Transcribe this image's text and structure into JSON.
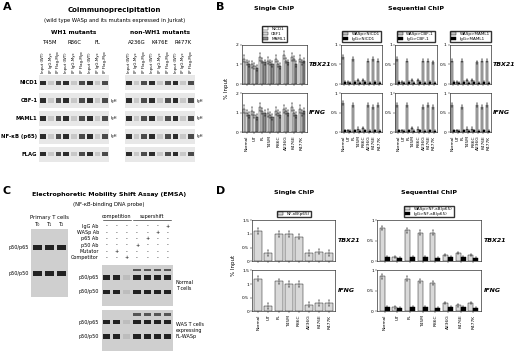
{
  "coip": {
    "label": "A",
    "title": "Coimmunoprecipitation",
    "subtitle": "(wild type WASp and its mutants expressed in Jurkat)",
    "groups": [
      {
        "title": "WH1 mutants",
        "mutants": [
          "T45M",
          "R86C",
          "FL"
        ]
      },
      {
        "title": "non-WH1 mutants",
        "mutants": [
          "A236G",
          "K476E",
          "R477K"
        ]
      }
    ],
    "lanes": [
      "Input (WT)",
      "IP IgG-Myc",
      "IP Flag-Myc"
    ],
    "rows": [
      "NICD1",
      "CBF-1",
      "MAML1",
      "NF-κB (p65)",
      "FLAG"
    ],
    "row_notes": {
      "CBF-1": "IgH",
      "MAML1": "IgH",
      "NF-κB (p65)": "IgH"
    }
  },
  "emsa": {
    "label": "C",
    "title": "Electrophoretic Mobility Shift Assay (EMSA)",
    "subtitle": "(NF-κB-binding DNA probe)",
    "primary": {
      "title": "Primary T cells",
      "lanes": [
        "T₀",
        "T₁",
        "T₂"
      ]
    },
    "bands": [
      "p50/p65",
      "p50/p50"
    ],
    "lane_sections": [
      "competition",
      "competition",
      "competition",
      "supershift",
      "supershift",
      "supershift",
      "supershift"
    ],
    "treatments": [
      {
        "name": "IgG Ab",
        "marks": [
          "-",
          "-",
          "-",
          "-",
          "-",
          "-",
          "+"
        ]
      },
      {
        "name": "WASp Ab",
        "marks": [
          "-",
          "-",
          "-",
          "-",
          "-",
          "+",
          "-"
        ]
      },
      {
        "name": "p65 Ab",
        "marks": [
          "-",
          "-",
          "-",
          "-",
          "+",
          "-",
          "-"
        ]
      },
      {
        "name": "p50 Ab",
        "marks": [
          "-",
          "-",
          "-",
          "+",
          "-",
          "-",
          "-"
        ]
      },
      {
        "name": "Mutator",
        "marks": [
          "-",
          "+",
          "-",
          "-",
          "-",
          "-",
          "-"
        ]
      },
      {
        "name": "Competitor",
        "marks": [
          "-",
          "-",
          "+",
          "-",
          "-",
          "-",
          "-"
        ]
      }
    ],
    "gels": [
      "Normal\nT cells",
      "WAS T cells\nexpressing\nFL-WASp"
    ]
  },
  "chip_panels": [
    {
      "label": "B",
      "titles": [
        "Single ChIP",
        "Sequential ChIP"
      ]
    },
    {
      "label": "D",
      "titles": [
        "Single ChIP",
        "Sequential ChIP"
      ]
    }
  ],
  "chart_data": [
    {
      "type": "bar",
      "categories": [
        "Normal",
        "UT",
        "FL",
        "T45M",
        "R86C",
        "A236G",
        "K476E",
        "R477K"
      ],
      "series": [
        {
          "name": "NICD1",
          "color": "#ffffff",
          "values": [
            1.3,
            1.0,
            1.4,
            1.2,
            1.3,
            1.5,
            1.4,
            1.3
          ],
          "errors": [
            0.2,
            0.2,
            0.2,
            0.2,
            0.2,
            0.2,
            0.2,
            0.2
          ]
        },
        {
          "name": "CBF1",
          "color": "#d9d9d9",
          "values": [
            1.1,
            0.9,
            1.2,
            1.1,
            1.0,
            1.2,
            1.3,
            1.1
          ],
          "errors": [
            0.15,
            0.15,
            0.15,
            0.15,
            0.15,
            0.15,
            0.15,
            0.15
          ]
        },
        {
          "name": "MAML1",
          "color": "#8c8c8c",
          "values": [
            1.0,
            0.8,
            1.1,
            1.0,
            0.9,
            1.1,
            1.0,
            1.2
          ],
          "errors": [
            0.15,
            0.15,
            0.15,
            0.15,
            0.15,
            0.15,
            0.15,
            0.15
          ]
        }
      ],
      "ylim": [
        0,
        2
      ],
      "yticks": [
        0,
        1,
        2
      ],
      "legend": "top",
      "tick_labels": "y",
      "y_label": "% Input",
      "annotation": "TBX21"
    },
    {
      "type": "bar",
      "categories": [
        "Normal",
        "UT",
        "FL",
        "T45M",
        "R86C",
        "A236G",
        "K476E",
        "R477K"
      ],
      "series": [
        {
          "name": "NICD1",
          "color": "#ffffff",
          "values": [
            1.2,
            1.1,
            1.3,
            1.0,
            1.1,
            1.2,
            1.3,
            1.2
          ],
          "errors": [
            0.2,
            0.2,
            0.2,
            0.2,
            0.2,
            0.2,
            0.2,
            0.2
          ]
        },
        {
          "name": "CBF1",
          "color": "#d9d9d9",
          "values": [
            1.0,
            0.9,
            1.1,
            0.9,
            1.0,
            1.1,
            1.0,
            1.0
          ],
          "errors": [
            0.15,
            0.15,
            0.15,
            0.15,
            0.15,
            0.15,
            0.15,
            0.15
          ]
        },
        {
          "name": "MAML1",
          "color": "#8c8c8c",
          "values": [
            0.9,
            0.8,
            1.0,
            0.8,
            0.9,
            1.0,
            0.9,
            1.1
          ],
          "errors": [
            0.15,
            0.15,
            0.15,
            0.15,
            0.15,
            0.15,
            0.15,
            0.15
          ]
        }
      ],
      "ylim": [
        0,
        2
      ],
      "yticks": [
        0,
        1,
        2
      ],
      "annotation": "IFNG"
    },
    {
      "type": "bar",
      "categories": [
        "Normal",
        "UT",
        "FL",
        "T45M",
        "R86C",
        "A236G",
        "K476E",
        "R477K"
      ],
      "series": [
        {
          "name": "WASp>NICD1",
          "color": "#bfbfbf",
          "values": [
            0.7,
            0.05,
            0.65,
            0.1,
            0.1,
            0.6,
            0.65,
            0.6
          ],
          "errors": [
            0.05,
            0.02,
            0.05,
            0.03,
            0.03,
            0.05,
            0.05,
            0.05
          ]
        },
        {
          "name": "IgG>NICD1",
          "color": "#000000",
          "values": [
            0.05,
            0.04,
            0.05,
            0.04,
            0.05,
            0.04,
            0.05,
            0.04
          ],
          "errors": [
            0.02,
            0.02,
            0.02,
            0.02,
            0.02,
            0.02,
            0.02,
            0.02
          ]
        }
      ],
      "ylim": [
        0,
        1
      ],
      "yticks": [
        0,
        0.5,
        1
      ],
      "legend": "top",
      "tick_labels": "y"
    },
    {
      "type": "bar",
      "categories": [
        "Normal",
        "UT",
        "FL",
        "T45M",
        "R86C",
        "A236G",
        "K476E",
        "R477K"
      ],
      "series": [
        {
          "name": "WASp>NICD1",
          "color": "#bfbfbf",
          "values": [
            0.75,
            0.05,
            0.7,
            0.1,
            0.12,
            0.7,
            0.65,
            0.7
          ],
          "errors": [
            0.05,
            0.02,
            0.05,
            0.03,
            0.03,
            0.05,
            0.05,
            0.05
          ]
        },
        {
          "name": "IgG>NICD1",
          "color": "#000000",
          "values": [
            0.05,
            0.04,
            0.05,
            0.04,
            0.05,
            0.04,
            0.05,
            0.04
          ],
          "errors": [
            0.02,
            0.02,
            0.02,
            0.02,
            0.02,
            0.02,
            0.02,
            0.02
          ]
        }
      ],
      "ylim": [
        0,
        1
      ],
      "yticks": [
        0,
        0.5,
        1
      ]
    },
    {
      "type": "bar",
      "categories": [
        "Normal",
        "UT",
        "FL",
        "T45M",
        "R86C",
        "A236G",
        "K476E",
        "R477K"
      ],
      "series": [
        {
          "name": "WASp>CBF-1",
          "color": "#bfbfbf",
          "values": [
            0.65,
            0.05,
            0.6,
            0.1,
            0.1,
            0.6,
            0.6,
            0.55
          ],
          "errors": [
            0.05,
            0.02,
            0.05,
            0.03,
            0.03,
            0.05,
            0.05,
            0.05
          ]
        },
        {
          "name": "IgG>CBF-1",
          "color": "#000000",
          "values": [
            0.05,
            0.04,
            0.05,
            0.04,
            0.05,
            0.04,
            0.05,
            0.04
          ],
          "errors": [
            0.02,
            0.02,
            0.02,
            0.02,
            0.02,
            0.02,
            0.02,
            0.02
          ]
        }
      ],
      "ylim": [
        0,
        1
      ],
      "yticks": [
        0,
        0.5,
        1
      ],
      "legend": "top",
      "tick_labels": "y"
    },
    {
      "type": "bar",
      "categories": [
        "Normal",
        "UT",
        "FL",
        "T45M",
        "R86C",
        "A236G",
        "K476E",
        "R477K"
      ],
      "series": [
        {
          "name": "WASp>CBF-1",
          "color": "#bfbfbf",
          "values": [
            0.7,
            0.05,
            0.7,
            0.12,
            0.1,
            0.65,
            0.7,
            0.65
          ],
          "errors": [
            0.05,
            0.02,
            0.05,
            0.03,
            0.03,
            0.05,
            0.05,
            0.05
          ]
        },
        {
          "name": "IgG>CBF-1",
          "color": "#000000",
          "values": [
            0.05,
            0.04,
            0.05,
            0.04,
            0.05,
            0.04,
            0.05,
            0.04
          ],
          "errors": [
            0.02,
            0.02,
            0.02,
            0.02,
            0.02,
            0.02,
            0.02,
            0.02
          ]
        }
      ],
      "ylim": [
        0,
        1
      ],
      "yticks": [
        0,
        0.5,
        1
      ]
    },
    {
      "type": "bar",
      "categories": [
        "Normal",
        "UT",
        "FL",
        "T45M",
        "R86C",
        "A236G",
        "K476E",
        "R477K"
      ],
      "series": [
        {
          "name": "WASp>MAML1",
          "color": "#bfbfbf",
          "values": [
            0.6,
            0.05,
            0.6,
            0.1,
            0.1,
            0.55,
            0.6,
            0.6
          ],
          "errors": [
            0.05,
            0.02,
            0.05,
            0.03,
            0.03,
            0.05,
            0.05,
            0.05
          ]
        },
        {
          "name": "IgG>MAML1",
          "color": "#000000",
          "values": [
            0.05,
            0.04,
            0.05,
            0.04,
            0.05,
            0.04,
            0.05,
            0.04
          ],
          "errors": [
            0.02,
            0.02,
            0.02,
            0.02,
            0.02,
            0.02,
            0.02,
            0.02
          ]
        }
      ],
      "ylim": [
        0,
        1
      ],
      "yticks": [
        0,
        0.5,
        1
      ],
      "legend": "top",
      "tick_labels": "y",
      "annotation": "TBX21"
    },
    {
      "type": "bar",
      "categories": [
        "Normal",
        "UT",
        "FL",
        "T45M",
        "R86C",
        "A236G",
        "K476E",
        "R477K"
      ],
      "series": [
        {
          "name": "WASp>MAML1",
          "color": "#bfbfbf",
          "values": [
            0.7,
            0.05,
            0.65,
            0.1,
            0.1,
            0.7,
            0.65,
            0.7
          ],
          "errors": [
            0.05,
            0.02,
            0.05,
            0.03,
            0.03,
            0.05,
            0.05,
            0.05
          ]
        },
        {
          "name": "IgG>MAML1",
          "color": "#000000",
          "values": [
            0.05,
            0.04,
            0.05,
            0.04,
            0.05,
            0.04,
            0.05,
            0.04
          ],
          "errors": [
            0.02,
            0.02,
            0.02,
            0.02,
            0.02,
            0.02,
            0.02,
            0.02
          ]
        }
      ],
      "ylim": [
        0,
        1
      ],
      "yticks": [
        0,
        0.5,
        1
      ],
      "annotation": "IFNG"
    },
    {
      "type": "bar",
      "categories": [
        "Normal",
        "UT",
        "FL",
        "T45M",
        "R86C",
        "A236G",
        "K476E",
        "R477K"
      ],
      "series": [
        {
          "name": "NF-κB(p65)",
          "color": "#d9d9d9",
          "values": [
            1.1,
            0.3,
            1.0,
            1.0,
            0.9,
            0.3,
            0.35,
            0.3
          ],
          "errors": [
            0.1,
            0.1,
            0.1,
            0.1,
            0.1,
            0.1,
            0.1,
            0.1
          ]
        }
      ],
      "ylim": [
        0,
        1.5
      ],
      "yticks": [
        0,
        0.5,
        1,
        1.5
      ],
      "legend": "top",
      "tick_labels": "y",
      "y_label": "% Input",
      "annotation": "TBX21"
    },
    {
      "type": "bar",
      "categories": [
        "Normal",
        "UT",
        "FL",
        "T45M",
        "R86C",
        "A236G",
        "K476E",
        "R477K"
      ],
      "series": [
        {
          "name": "NF-κB(p65)",
          "color": "#d9d9d9",
          "values": [
            1.2,
            0.2,
            1.1,
            1.0,
            1.0,
            0.25,
            0.3,
            0.3
          ],
          "errors": [
            0.1,
            0.1,
            0.1,
            0.1,
            0.1,
            0.1,
            0.1,
            0.1
          ]
        }
      ],
      "ylim": [
        0,
        1.5
      ],
      "yticks": [
        0,
        0.5,
        1,
        1.5
      ],
      "annotation": "IFNG"
    },
    {
      "type": "bar",
      "categories": [
        "Normal",
        "UT",
        "FL",
        "T45M",
        "R86C",
        "A236G",
        "K476E",
        "R477K"
      ],
      "series": [
        {
          "name": "WASp>NF-κB(p65)",
          "color": "#d9d9d9",
          "values": [
            0.8,
            0.1,
            0.75,
            0.7,
            0.7,
            0.15,
            0.2,
            0.15
          ],
          "errors": [
            0.05,
            0.03,
            0.05,
            0.05,
            0.05,
            0.03,
            0.03,
            0.03
          ]
        },
        {
          "name": "IgG>NF-κB(p65)",
          "color": "#000000",
          "values": [
            0.1,
            0.08,
            0.1,
            0.1,
            0.08,
            0.1,
            0.1,
            0.08
          ],
          "errors": [
            0.03,
            0.03,
            0.03,
            0.03,
            0.03,
            0.03,
            0.03,
            0.03
          ]
        }
      ],
      "ylim": [
        0,
        1
      ],
      "yticks": [
        0,
        0.5,
        1
      ],
      "legend": "top",
      "tick_labels": "y",
      "annotation": "TBX21"
    },
    {
      "type": "bar",
      "categories": [
        "Normal",
        "UT",
        "FL",
        "T45M",
        "R86C",
        "A236G",
        "K476E",
        "R477K"
      ],
      "series": [
        {
          "name": "WASp>NF-κB(p65)",
          "color": "#d9d9d9",
          "values": [
            0.85,
            0.1,
            0.8,
            0.75,
            0.7,
            0.2,
            0.15,
            0.2
          ],
          "errors": [
            0.05,
            0.03,
            0.05,
            0.05,
            0.05,
            0.03,
            0.03,
            0.03
          ]
        },
        {
          "name": "IgG>NF-κB(p65)",
          "color": "#000000",
          "values": [
            0.1,
            0.08,
            0.1,
            0.1,
            0.08,
            0.1,
            0.1,
            0.08
          ],
          "errors": [
            0.03,
            0.03,
            0.03,
            0.03,
            0.03,
            0.03,
            0.03,
            0.03
          ]
        }
      ],
      "ylim": [
        0,
        1
      ],
      "yticks": [
        0,
        0.5,
        1
      ],
      "annotation": "IFNG"
    }
  ]
}
